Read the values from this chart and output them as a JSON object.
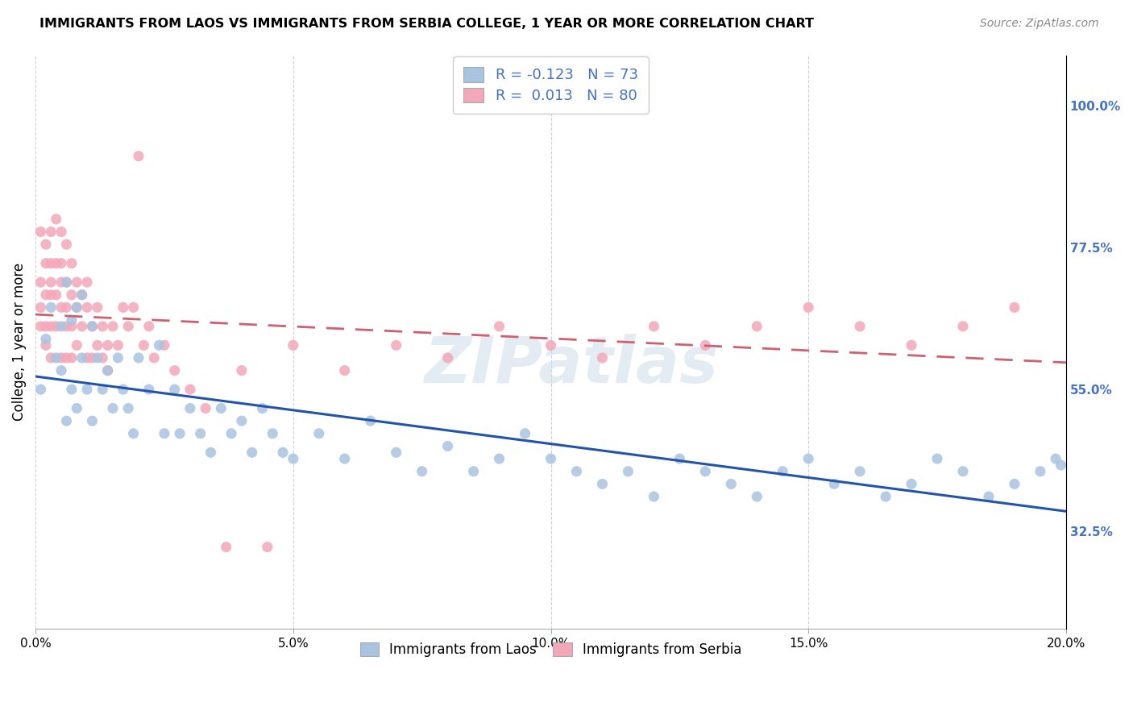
{
  "title": "IMMIGRANTS FROM LAOS VS IMMIGRANTS FROM SERBIA COLLEGE, 1 YEAR OR MORE CORRELATION CHART",
  "source": "Source: ZipAtlas.com",
  "xlabel_ticks": [
    "0.0%",
    "5.0%",
    "10.0%",
    "15.0%",
    "20.0%"
  ],
  "xlabel_vals": [
    0.0,
    0.05,
    0.1,
    0.15,
    0.2
  ],
  "ylabel": "College, 1 year or more",
  "ylabel_ticks_right": [
    "100.0%",
    "77.5%",
    "55.0%",
    "32.5%"
  ],
  "ylabel_vals_right": [
    1.0,
    0.775,
    0.55,
    0.325
  ],
  "xlim": [
    0.0,
    0.2
  ],
  "ylim": [
    0.17,
    1.08
  ],
  "laos_color": "#a8c4e0",
  "serbia_color": "#f4a7b9",
  "laos_line_color": "#2255aa",
  "serbia_line_color": "#d06070",
  "laos_R": -0.123,
  "laos_N": 73,
  "serbia_R": 0.013,
  "serbia_N": 80,
  "watermark": "ZIPatlas",
  "background_color": "#ffffff",
  "grid_color": "#cccccc",
  "laos_x": [
    0.001,
    0.002,
    0.003,
    0.004,
    0.005,
    0.005,
    0.006,
    0.006,
    0.007,
    0.007,
    0.008,
    0.008,
    0.009,
    0.009,
    0.01,
    0.011,
    0.011,
    0.012,
    0.013,
    0.014,
    0.015,
    0.016,
    0.017,
    0.018,
    0.019,
    0.02,
    0.022,
    0.024,
    0.025,
    0.027,
    0.028,
    0.03,
    0.032,
    0.034,
    0.036,
    0.038,
    0.04,
    0.042,
    0.044,
    0.046,
    0.048,
    0.05,
    0.055,
    0.06,
    0.065,
    0.07,
    0.075,
    0.08,
    0.085,
    0.09,
    0.095,
    0.1,
    0.105,
    0.11,
    0.115,
    0.12,
    0.125,
    0.13,
    0.135,
    0.14,
    0.145,
    0.15,
    0.155,
    0.16,
    0.165,
    0.17,
    0.175,
    0.18,
    0.185,
    0.19,
    0.195,
    0.198,
    0.199
  ],
  "laos_y": [
    0.55,
    0.63,
    0.68,
    0.6,
    0.65,
    0.58,
    0.72,
    0.5,
    0.66,
    0.55,
    0.68,
    0.52,
    0.7,
    0.6,
    0.55,
    0.65,
    0.5,
    0.6,
    0.55,
    0.58,
    0.52,
    0.6,
    0.55,
    0.52,
    0.48,
    0.6,
    0.55,
    0.62,
    0.48,
    0.55,
    0.48,
    0.52,
    0.48,
    0.45,
    0.52,
    0.48,
    0.5,
    0.45,
    0.52,
    0.48,
    0.45,
    0.44,
    0.48,
    0.44,
    0.5,
    0.45,
    0.42,
    0.46,
    0.42,
    0.44,
    0.48,
    0.44,
    0.42,
    0.4,
    0.42,
    0.38,
    0.44,
    0.42,
    0.4,
    0.38,
    0.42,
    0.44,
    0.4,
    0.42,
    0.38,
    0.4,
    0.44,
    0.42,
    0.38,
    0.4,
    0.42,
    0.44,
    0.43
  ],
  "serbia_x": [
    0.001,
    0.001,
    0.001,
    0.001,
    0.002,
    0.002,
    0.002,
    0.002,
    0.002,
    0.003,
    0.003,
    0.003,
    0.003,
    0.003,
    0.003,
    0.004,
    0.004,
    0.004,
    0.004,
    0.005,
    0.005,
    0.005,
    0.005,
    0.005,
    0.006,
    0.006,
    0.006,
    0.006,
    0.006,
    0.007,
    0.007,
    0.007,
    0.007,
    0.008,
    0.008,
    0.008,
    0.009,
    0.009,
    0.01,
    0.01,
    0.01,
    0.011,
    0.011,
    0.012,
    0.012,
    0.013,
    0.013,
    0.014,
    0.014,
    0.015,
    0.016,
    0.017,
    0.018,
    0.019,
    0.02,
    0.021,
    0.022,
    0.023,
    0.025,
    0.027,
    0.03,
    0.033,
    0.037,
    0.04,
    0.045,
    0.05,
    0.06,
    0.07,
    0.08,
    0.09,
    0.1,
    0.11,
    0.12,
    0.13,
    0.14,
    0.15,
    0.16,
    0.17,
    0.18,
    0.19
  ],
  "serbia_y": [
    0.72,
    0.68,
    0.65,
    0.8,
    0.75,
    0.7,
    0.65,
    0.62,
    0.78,
    0.8,
    0.75,
    0.7,
    0.65,
    0.6,
    0.72,
    0.82,
    0.75,
    0.7,
    0.65,
    0.8,
    0.75,
    0.72,
    0.68,
    0.6,
    0.78,
    0.72,
    0.68,
    0.65,
    0.6,
    0.75,
    0.7,
    0.65,
    0.6,
    0.72,
    0.68,
    0.62,
    0.7,
    0.65,
    0.72,
    0.68,
    0.6,
    0.65,
    0.6,
    0.68,
    0.62,
    0.65,
    0.6,
    0.62,
    0.58,
    0.65,
    0.62,
    0.68,
    0.65,
    0.68,
    0.92,
    0.62,
    0.65,
    0.6,
    0.62,
    0.58,
    0.55,
    0.52,
    0.3,
    0.58,
    0.3,
    0.62,
    0.58,
    0.62,
    0.6,
    0.65,
    0.62,
    0.6,
    0.65,
    0.62,
    0.65,
    0.68,
    0.65,
    0.62,
    0.65,
    0.68
  ]
}
